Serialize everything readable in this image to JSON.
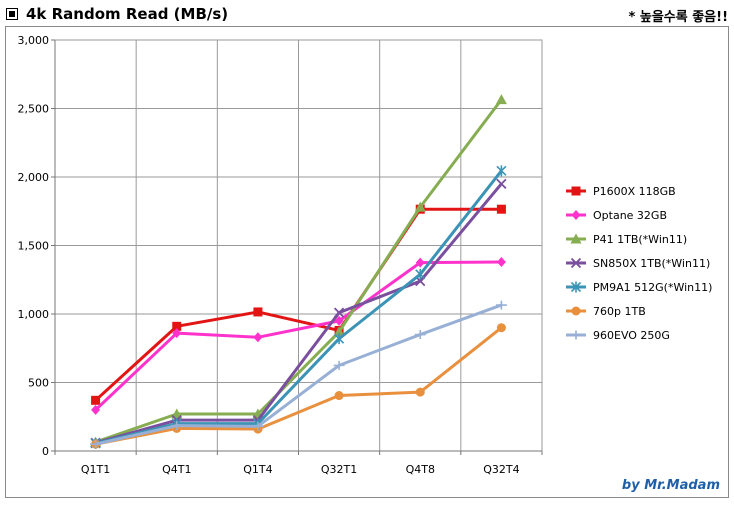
{
  "header": {
    "title": "4k Random Read (MB/s)",
    "note": "* 높을수록 좋음!!"
  },
  "credit": "by Mr.Madam",
  "chart_data": {
    "type": "line",
    "title": "4k Random Read (MB/s)",
    "xlabel": "",
    "ylabel": "",
    "categories": [
      "Q1T1",
      "Q4T1",
      "Q1T4",
      "Q32T1",
      "Q4T8",
      "Q32T4"
    ],
    "ylim": [
      0,
      3000
    ],
    "yticks": [
      0,
      500,
      1000,
      1500,
      2000,
      2500,
      3000
    ],
    "ytick_labels": [
      "0",
      "500",
      "1,000",
      "1,500",
      "2,000",
      "2,500",
      "3,000"
    ],
    "grid": true,
    "legend_position": "right",
    "series": [
      {
        "name": "P1600X 118GB",
        "color": "#e31414",
        "marker": "square",
        "values": [
          370,
          910,
          1015,
          880,
          1765,
          1765
        ]
      },
      {
        "name": "Optane 32GB",
        "color": "#ff33cc",
        "marker": "diamond",
        "values": [
          300,
          860,
          830,
          950,
          1375,
          1380
        ]
      },
      {
        "name": "P41 1TB(*Win11)",
        "color": "#86ad52",
        "marker": "triangle",
        "values": [
          65,
          270,
          270,
          870,
          1780,
          2565
        ]
      },
      {
        "name": "SN850X 1TB(*Win11)",
        "color": "#7a4f9e",
        "marker": "x",
        "values": [
          60,
          225,
          225,
          1010,
          1240,
          1950
        ]
      },
      {
        "name": "PM9A1 512G(*Win11)",
        "color": "#3b93b5",
        "marker": "star",
        "values": [
          55,
          200,
          200,
          820,
          1290,
          2045
        ]
      },
      {
        "name": "760p 1TB",
        "color": "#e8903e",
        "marker": "circle",
        "values": [
          50,
          165,
          160,
          405,
          430,
          900
        ]
      },
      {
        "name": "960EVO 250G",
        "color": "#98b0d6",
        "marker": "plus",
        "values": [
          50,
          185,
          180,
          625,
          850,
          1065
        ]
      }
    ]
  }
}
